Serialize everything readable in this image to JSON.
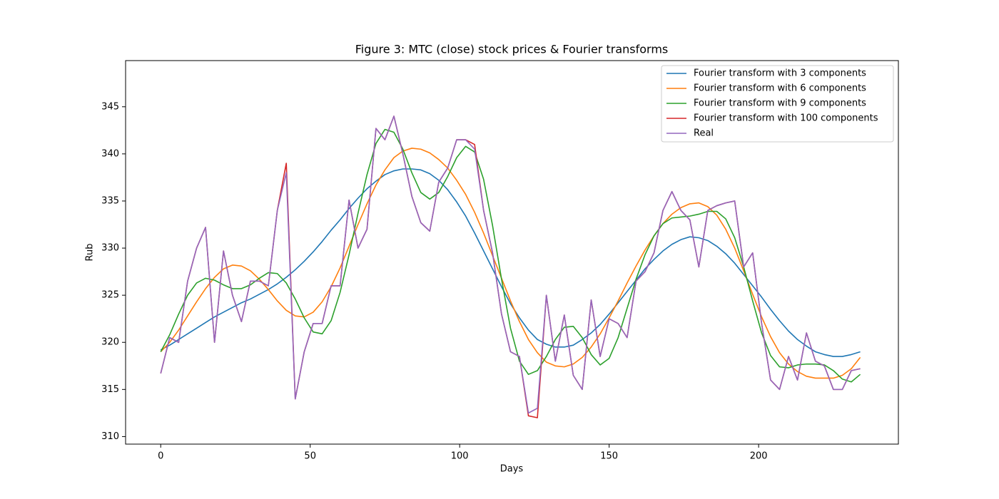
{
  "chart_data": {
    "type": "line",
    "title": "Figure 3: MTC (close) stock prices & Fourier transforms",
    "xlabel": "Days",
    "ylabel": "Rub",
    "x": [
      0,
      3,
      6,
      9,
      12,
      15,
      18,
      21,
      24,
      27,
      30,
      33,
      36,
      39,
      42,
      45,
      48,
      51,
      54,
      57,
      60,
      63,
      66,
      69,
      72,
      75,
      78,
      81,
      84,
      87,
      90,
      93,
      96,
      99,
      102,
      105,
      108,
      111,
      114,
      117,
      120,
      123,
      126,
      129,
      132,
      135,
      138,
      141,
      144,
      147,
      150,
      153,
      156,
      159,
      162,
      165,
      168,
      171,
      174,
      177,
      180,
      183,
      186,
      189,
      192,
      195,
      198,
      201,
      204,
      207,
      210,
      213,
      216,
      219,
      222,
      225,
      228,
      231,
      234
    ],
    "xlim": [
      -11.75,
      246.75
    ],
    "xticks": [
      0,
      50,
      100,
      150,
      200
    ],
    "ylim": [
      309.2,
      349.9
    ],
    "yticks": [
      310,
      315,
      320,
      325,
      330,
      335,
      340,
      345
    ],
    "legend": "upper right",
    "series": [
      {
        "name": "Fourier transform with 3 components",
        "color": "#1f77b4",
        "values": [
          319.2,
          319.7,
          320.3,
          320.9,
          321.5,
          322.1,
          322.7,
          323.2,
          323.7,
          324.2,
          324.6,
          325.1,
          325.6,
          326.2,
          326.9,
          327.7,
          328.6,
          329.6,
          330.7,
          331.9,
          333.0,
          334.2,
          335.3,
          336.3,
          337.1,
          337.8,
          338.2,
          338.4,
          338.4,
          338.3,
          337.9,
          337.2,
          336.2,
          334.9,
          333.4,
          331.6,
          329.7,
          327.8,
          325.9,
          324.1,
          322.6,
          321.3,
          320.3,
          319.8,
          319.5,
          319.5,
          319.7,
          320.3,
          321.0,
          321.9,
          323.0,
          324.2,
          325.4,
          326.6,
          327.8,
          328.8,
          329.7,
          330.4,
          330.9,
          331.2,
          331.1,
          330.8,
          330.2,
          329.4,
          328.4,
          327.2,
          326.0,
          324.8,
          323.5,
          322.3,
          321.2,
          320.3,
          319.6,
          319.0,
          318.7,
          318.5,
          318.5,
          318.7,
          319.0
        ]
      },
      {
        "name": "Fourier transform with 6 components",
        "color": "#ff7f0e",
        "values": [
          319.0,
          320.0,
          321.3,
          322.8,
          324.3,
          325.7,
          326.9,
          327.8,
          328.2,
          328.1,
          327.6,
          326.7,
          325.6,
          324.4,
          323.4,
          322.8,
          322.7,
          323.2,
          324.3,
          325.9,
          327.9,
          330.2,
          332.5,
          334.7,
          336.7,
          338.3,
          339.6,
          340.3,
          340.6,
          340.5,
          340.1,
          339.4,
          338.5,
          337.2,
          335.7,
          333.8,
          331.6,
          329.2,
          326.8,
          324.4,
          322.2,
          320.3,
          318.9,
          317.9,
          317.5,
          317.4,
          317.7,
          318.4,
          319.5,
          320.9,
          322.6,
          324.4,
          326.3,
          328.1,
          329.8,
          331.3,
          332.6,
          333.6,
          334.3,
          334.7,
          334.8,
          334.4,
          333.5,
          332.0,
          330.0,
          327.6,
          325.1,
          322.7,
          320.6,
          318.9,
          317.7,
          316.9,
          316.4,
          316.2,
          316.2,
          316.2,
          316.5,
          317.2,
          318.4
        ]
      },
      {
        "name": "Fourier transform with 9 components",
        "color": "#2ca02c",
        "values": [
          319.0,
          320.8,
          323.0,
          325.0,
          326.3,
          326.8,
          326.6,
          326.1,
          325.7,
          325.7,
          326.1,
          326.8,
          327.4,
          327.3,
          326.3,
          324.6,
          322.6,
          321.1,
          320.9,
          322.3,
          325.3,
          329.3,
          333.7,
          337.8,
          341.1,
          342.6,
          342.3,
          340.5,
          338.0,
          335.9,
          335.2,
          335.9,
          337.6,
          339.6,
          340.8,
          340.2,
          337.3,
          332.4,
          326.7,
          321.5,
          318.0,
          316.6,
          317.0,
          318.5,
          320.3,
          321.6,
          321.7,
          320.5,
          318.7,
          317.6,
          318.3,
          320.5,
          323.6,
          326.7,
          329.3,
          331.3,
          332.6,
          333.2,
          333.3,
          333.4,
          333.6,
          333.9,
          333.9,
          333.1,
          331.1,
          328.0,
          324.4,
          321.0,
          318.6,
          317.4,
          317.3,
          317.6,
          317.7,
          317.7,
          317.6,
          317.0,
          316.1,
          315.8,
          316.6
        ]
      },
      {
        "name": "Fourier transform with 100 components",
        "color": "#d62728",
        "values": [
          316.7,
          320.5,
          320,
          326.5,
          330,
          332.2,
          320,
          329.7,
          325,
          322.2,
          326.5,
          326.5,
          326,
          334,
          339,
          314,
          319,
          322,
          322,
          326,
          326,
          335.1,
          330,
          332,
          342.7,
          341.5,
          344,
          340,
          335.5,
          332.7,
          331.8,
          337,
          338.5,
          341.5,
          341.5,
          341,
          334,
          329.5,
          323,
          319,
          318.5,
          312.2,
          312,
          325,
          318,
          322.9,
          316.5,
          315,
          324.5,
          318.5,
          322.5,
          322,
          320.5,
          326.5,
          327.5,
          329.5,
          334,
          336,
          334,
          333,
          328,
          334,
          334.5,
          334.8,
          335,
          328,
          329.5,
          322,
          316,
          315,
          318.5,
          316,
          321,
          318,
          317.5,
          315,
          315,
          317,
          317.2
        ]
      },
      {
        "name": "Real",
        "color": "#9467bd",
        "values": [
          316.7,
          320.5,
          320,
          326.5,
          330,
          332.2,
          320,
          329.7,
          325,
          322.2,
          326.5,
          326.5,
          326,
          334,
          338,
          314,
          319,
          322,
          322,
          326,
          326,
          335.1,
          330,
          332,
          342.7,
          341.5,
          344,
          340,
          335.5,
          332.7,
          331.8,
          337,
          338.5,
          341.5,
          341.5,
          340.5,
          334,
          329.5,
          323,
          319,
          318.5,
          312.5,
          313,
          325,
          318,
          322.9,
          316.5,
          315,
          324.5,
          318.5,
          322.5,
          322,
          320.5,
          326.5,
          327.5,
          329.5,
          334,
          336,
          334,
          333,
          328,
          334,
          334.5,
          334.8,
          335,
          328,
          329.5,
          322,
          316,
          315,
          318.5,
          316,
          321,
          318,
          317.5,
          315,
          315,
          317,
          317.2
        ]
      }
    ]
  }
}
